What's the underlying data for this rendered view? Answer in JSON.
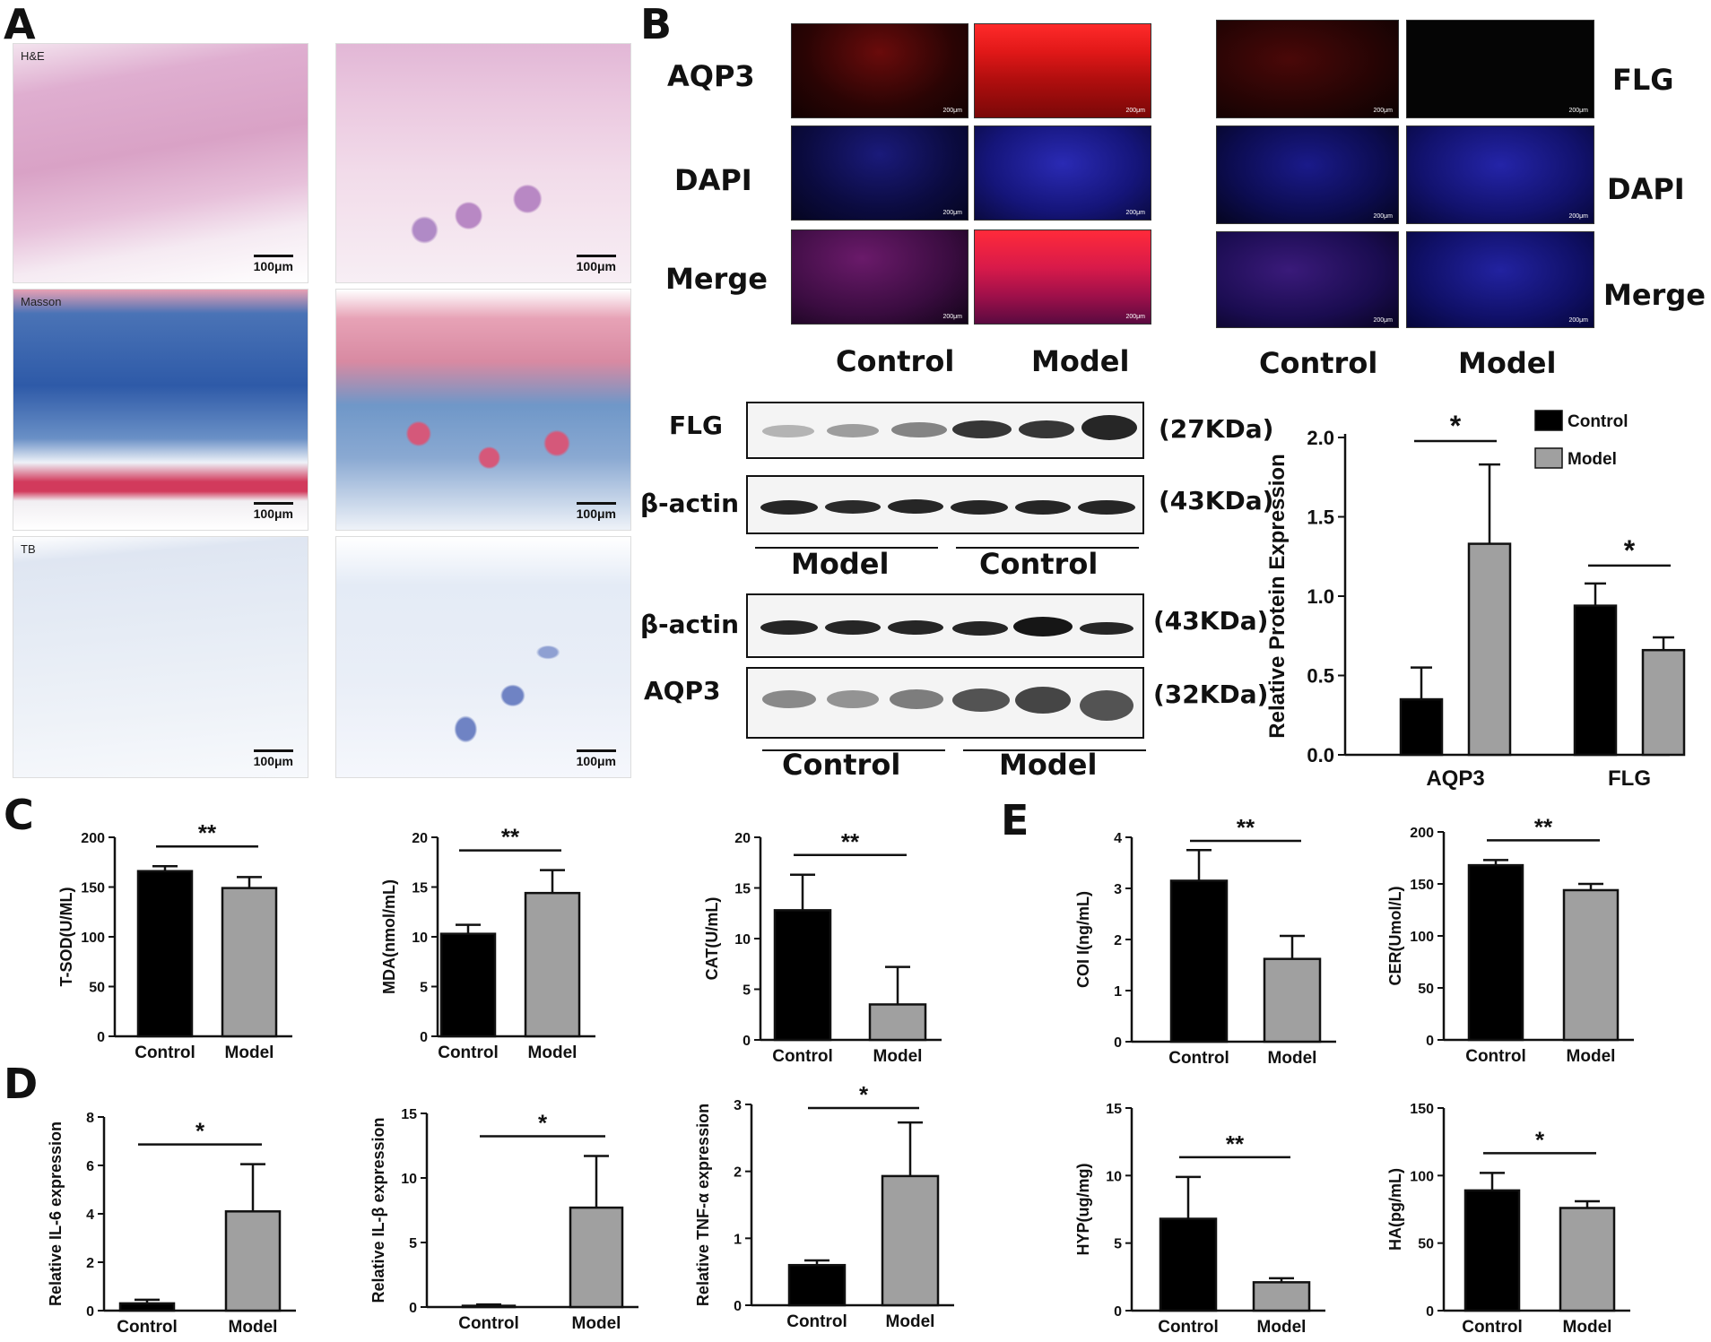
{
  "panels": {
    "a": "A",
    "b": "B",
    "c": "C",
    "d": "D",
    "e": "E"
  },
  "histology": {
    "he_label": "H&E",
    "masson_label": "Masson",
    "tb_label": "TB",
    "scale": "100μm"
  },
  "fluorescence": {
    "left_rows": [
      "AQP3",
      "DAPI",
      "Merge"
    ],
    "right_rows": [
      "FLG",
      "DAPI",
      "Merge"
    ],
    "group_labels": [
      "Control",
      "Model"
    ],
    "scale": "200μm"
  },
  "western_blot": {
    "blot1_label": "FLG",
    "blot1_size": "(27KDa)",
    "blot2_label": "β-actin",
    "blot2_size": "(43KDa)",
    "upper_groups": [
      "Model",
      "Control"
    ],
    "blot3_label": "β-actin",
    "blot3_size": "(43KDa)",
    "blot4_label": "AQP3",
    "blot4_size": "(32KDa)",
    "lower_groups": [
      "Control",
      "Model"
    ]
  },
  "colors": {
    "control": "#000000",
    "model": "#a0a0a0"
  },
  "chart_data": [
    {
      "id": "protein",
      "type": "bar",
      "categories": [
        "AQP3",
        "FLG"
      ],
      "series": [
        {
          "name": "Control",
          "values": [
            0.35,
            0.94
          ],
          "errors": [
            0.2,
            0.14
          ]
        },
        {
          "name": "Model",
          "values": [
            1.33,
            0.66
          ],
          "errors": [
            0.5,
            0.08
          ]
        }
      ],
      "ylabel": "Relative Protein Expression",
      "ylim": [
        0,
        2.0
      ],
      "yticks": [
        "0.0",
        "0.5",
        "1.0",
        "1.5",
        "2.0"
      ],
      "significance": [
        "*",
        "*"
      ],
      "legend": "top-right"
    },
    {
      "id": "tsod",
      "type": "bar",
      "categories": [
        "Control",
        "Model"
      ],
      "values": [
        166,
        149
      ],
      "errors": [
        5,
        11
      ],
      "ylabel": "T-SOD(U/ML)",
      "ylim": [
        0,
        200
      ],
      "yticks": [
        "0",
        "50",
        "100",
        "150",
        "200"
      ],
      "significance": "**"
    },
    {
      "id": "mda",
      "type": "bar",
      "categories": [
        "Control",
        "Model"
      ],
      "values": [
        10.3,
        14.4
      ],
      "errors": [
        0.9,
        2.3
      ],
      "ylabel": "MDA(nmol/mL)",
      "ylim": [
        0,
        20
      ],
      "yticks": [
        "0",
        "5",
        "10",
        "15",
        "20"
      ],
      "significance": "**"
    },
    {
      "id": "cat",
      "type": "bar",
      "categories": [
        "Control",
        "Model"
      ],
      "values": [
        12.8,
        3.5
      ],
      "errors": [
        3.5,
        3.7
      ],
      "ylabel": "CAT(U/mL)",
      "ylim": [
        0,
        20
      ],
      "yticks": [
        "0",
        "5",
        "10",
        "15",
        "20"
      ],
      "significance": "**"
    },
    {
      "id": "coi",
      "type": "bar",
      "categories": [
        "Control",
        "Model"
      ],
      "values": [
        3.15,
        1.62
      ],
      "errors": [
        0.6,
        0.45
      ],
      "ylabel": "COI I(ng/mL)",
      "ylim": [
        0,
        4
      ],
      "yticks": [
        "0",
        "1",
        "2",
        "3",
        "4"
      ],
      "significance": "**"
    },
    {
      "id": "cer",
      "type": "bar",
      "categories": [
        "Control",
        "Model"
      ],
      "values": [
        168,
        144
      ],
      "errors": [
        5,
        6
      ],
      "ylabel": "CER(Umol/L)",
      "ylim": [
        0,
        200
      ],
      "yticks": [
        "0",
        "50",
        "100",
        "150",
        "200"
      ],
      "significance": "**"
    },
    {
      "id": "il6",
      "type": "bar",
      "categories": [
        "Control",
        "Model"
      ],
      "values": [
        0.3,
        4.1
      ],
      "errors": [
        0.15,
        1.95
      ],
      "ylabel": "Relative IL-6 expression",
      "ylim": [
        0,
        8
      ],
      "yticks": [
        "0",
        "2",
        "4",
        "6",
        "8"
      ],
      "significance": "*"
    },
    {
      "id": "il1b",
      "type": "bar",
      "categories": [
        "Control",
        "Model"
      ],
      "values": [
        0.1,
        7.7
      ],
      "errors": [
        0.1,
        4.0
      ],
      "ylabel": "Relative IL-β expression",
      "ylim": [
        0,
        15
      ],
      "yticks": [
        "0",
        "5",
        "10",
        "15"
      ],
      "significance": "*"
    },
    {
      "id": "tnf",
      "type": "bar",
      "categories": [
        "Control",
        "Model"
      ],
      "values": [
        0.6,
        1.93
      ],
      "errors": [
        0.07,
        0.8
      ],
      "ylabel": "Relative TNF-α expression",
      "ylim": [
        0,
        3
      ],
      "yticks": [
        "0",
        "1",
        "2",
        "3"
      ],
      "significance": "*"
    },
    {
      "id": "hyp",
      "type": "bar",
      "categories": [
        "Control",
        "Model"
      ],
      "values": [
        6.8,
        2.1
      ],
      "errors": [
        3.1,
        0.3
      ],
      "ylabel": "HYP(ug/mg)",
      "ylim": [
        0,
        15
      ],
      "yticks": [
        "0",
        "5",
        "10",
        "15"
      ],
      "significance": "**"
    },
    {
      "id": "ha",
      "type": "bar",
      "categories": [
        "Control",
        "Model"
      ],
      "values": [
        89,
        76
      ],
      "errors": [
        13,
        5
      ],
      "ylabel": "HA(pg/mL)",
      "ylim": [
        0,
        150
      ],
      "yticks": [
        "0",
        "50",
        "100",
        "150"
      ],
      "significance": "*"
    }
  ]
}
